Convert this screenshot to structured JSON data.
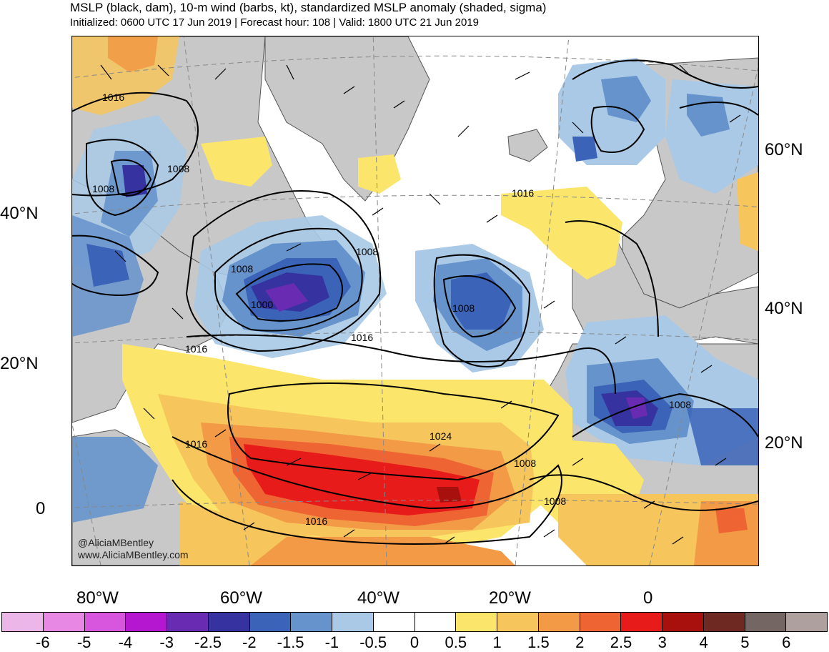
{
  "header": {
    "title": "MSLP (black, dam), 10-m wind (barbs, kt), standardized MSLP anomaly (shaded, sigma)",
    "subtitle": "Initialized: 0600 UTC 17 Jun 2019 | Forecast hour: 108 | Valid: 1800 UTC 21 Jun 2019"
  },
  "lat_labels_left": [
    "40°N",
    "20°N",
    "0"
  ],
  "lat_labels_right": [
    "60°N",
    "40°N",
    "20°N"
  ],
  "lon_labels": [
    "80°W",
    "60°W",
    "40°W",
    "20°W",
    "0"
  ],
  "credit": {
    "line1": "@AliciaMBentley",
    "line2": "www.AliciaMBentley.com"
  },
  "isobar_labels": [
    "1016",
    "1008",
    "1008",
    "1008",
    "1008",
    "1000",
    "1008",
    "1008",
    "1016",
    "1016",
    "1016",
    "1024",
    "1016",
    "1008",
    "1016",
    "1008"
  ],
  "colorbar": {
    "colors": [
      "#ecb6e8",
      "#e788e4",
      "#d856dd",
      "#b516d0",
      "#6a2bb3",
      "#3633a0",
      "#3b64b8",
      "#6693cc",
      "#a9c9e6",
      "#ffffff",
      "#ffffff",
      "#fbe56a",
      "#f6c55c",
      "#f29a46",
      "#ee6433",
      "#e81b1b",
      "#a8100e",
      "#6e2a22",
      "#746663",
      "#aea09e"
    ],
    "tick_labels": [
      "-6",
      "-5",
      "-4",
      "-3",
      "-2.5",
      "-2",
      "-1.5",
      "-1",
      "-0.5",
      "0",
      "0.5",
      "1",
      "1.5",
      "2",
      "2.5",
      "3",
      "4",
      "5",
      "6"
    ]
  },
  "palette": {
    "land": "#c8c8c8",
    "coast": "#555555",
    "grid": "#888888",
    "isobar": "#000000"
  }
}
